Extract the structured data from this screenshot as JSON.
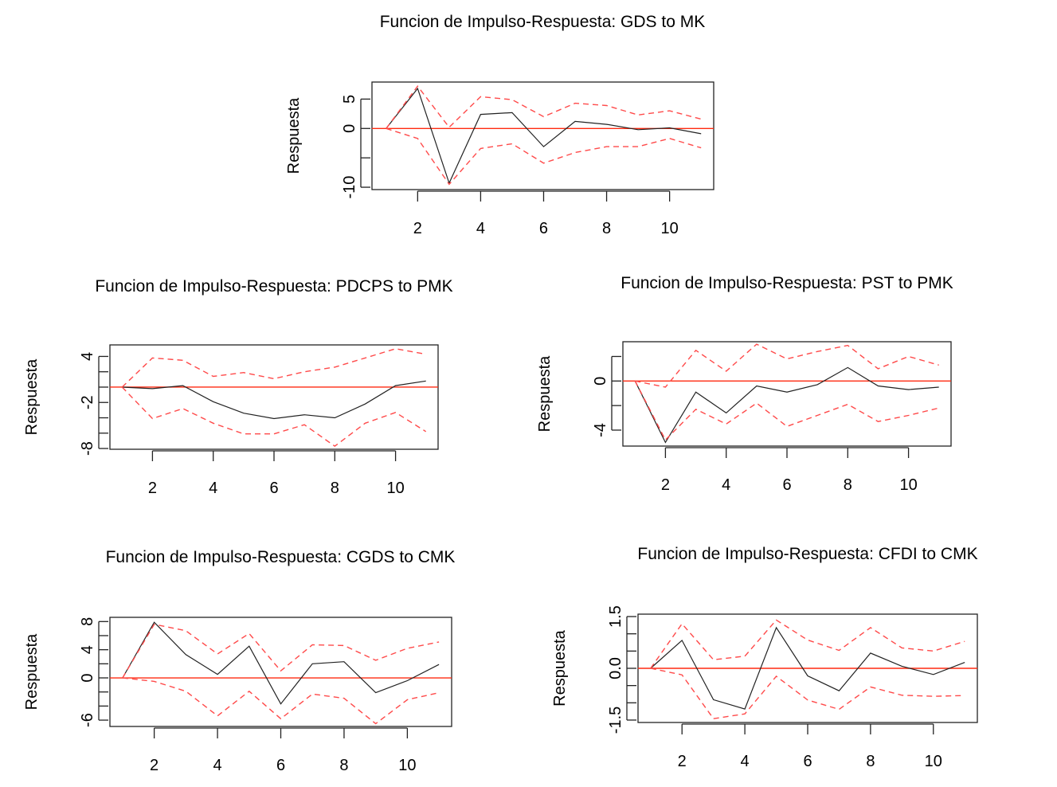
{
  "chart_data": [
    {
      "type": "line",
      "title": "Funcion de Impulso-Respuesta: GDS to MK",
      "xlabel": "",
      "ylabel": "Respuesta",
      "x": [
        1,
        2,
        3,
        4,
        5,
        6,
        7,
        8,
        9,
        10,
        11
      ],
      "xticks": [
        2,
        4,
        6,
        8,
        10
      ],
      "yticks": [
        5,
        0,
        -5,
        -10
      ],
      "ytick_labels": [
        "5",
        "0",
        "",
        "-10"
      ],
      "xlim": [
        0.55,
        11.4
      ],
      "ylim": [
        -10.4,
        7.9
      ],
      "reference_line": 0,
      "series": [
        {
          "name": "response",
          "style": "solid-black",
          "values": [
            0,
            6.8,
            -9.3,
            2.4,
            2.7,
            -3.1,
            1.2,
            0.7,
            -0.2,
            0.1,
            -0.9
          ]
        },
        {
          "name": "upper",
          "style": "dashed-red",
          "values": [
            0,
            7.2,
            0.2,
            5.4,
            4.9,
            2.0,
            4.3,
            3.9,
            2.3,
            3.0,
            1.6
          ]
        },
        {
          "name": "lower",
          "style": "dashed-red",
          "values": [
            0,
            -1.7,
            -9.5,
            -3.4,
            -2.6,
            -5.9,
            -4.1,
            -3.1,
            -3.1,
            -1.7,
            -3.3
          ]
        }
      ]
    },
    {
      "type": "line",
      "title": "Funcion de Impulso-Respuesta: PDCPS to PMK",
      "xlabel": "",
      "ylabel": "Respuesta",
      "x": [
        1,
        2,
        3,
        4,
        5,
        6,
        7,
        8,
        9,
        10,
        11
      ],
      "xticks": [
        2,
        4,
        6,
        8,
        10
      ],
      "yticks": [
        4,
        2,
        0,
        -2,
        -4,
        -6,
        -8
      ],
      "ytick_labels": [
        "4",
        "",
        "",
        "-2",
        "",
        "",
        "-8"
      ],
      "xlim": [
        0.6,
        11.4
      ],
      "ylim": [
        -8.1,
        5.5
      ],
      "reference_line": 0,
      "series": [
        {
          "name": "response",
          "style": "solid-black",
          "values": [
            0,
            -0.2,
            0.2,
            -1.9,
            -3.4,
            -4.1,
            -3.6,
            -4.0,
            -2.2,
            0.2,
            0.8
          ]
        },
        {
          "name": "upper",
          "style": "dashed-red",
          "values": [
            0,
            3.8,
            3.5,
            1.4,
            1.9,
            1.1,
            2.0,
            2.6,
            3.8,
            5.0,
            4.3
          ]
        },
        {
          "name": "lower",
          "style": "dashed-red",
          "values": [
            0,
            -4.1,
            -2.8,
            -4.7,
            -6.1,
            -6.1,
            -4.9,
            -7.7,
            -4.7,
            -3.3,
            -5.8
          ]
        }
      ]
    },
    {
      "type": "line",
      "title": "Funcion de Impulso-Respuesta: PST to PMK",
      "xlabel": "",
      "ylabel": "Respuesta",
      "x": [
        1,
        2,
        3,
        4,
        5,
        6,
        7,
        8,
        9,
        10,
        11
      ],
      "xticks": [
        2,
        4,
        6,
        8,
        10
      ],
      "yticks": [
        2,
        0,
        -2,
        -4
      ],
      "ytick_labels": [
        "",
        "0",
        "",
        "-4"
      ],
      "xlim": [
        0.6,
        11.4
      ],
      "ylim": [
        -5.3,
        3.2
      ],
      "reference_line": 0,
      "series": [
        {
          "name": "response",
          "style": "solid-black",
          "values": [
            0,
            -5.0,
            -0.9,
            -2.6,
            -0.4,
            -0.9,
            -0.3,
            1.1,
            -0.4,
            -0.7,
            -0.5
          ]
        },
        {
          "name": "upper",
          "style": "dashed-red",
          "values": [
            0,
            -0.5,
            2.5,
            0.8,
            3.0,
            1.8,
            2.4,
            2.9,
            1.0,
            2.0,
            1.3
          ]
        },
        {
          "name": "lower",
          "style": "dashed-red",
          "values": [
            0,
            -4.8,
            -2.3,
            -3.5,
            -1.8,
            -3.7,
            -2.8,
            -1.9,
            -3.3,
            -2.8,
            -2.2
          ]
        }
      ]
    },
    {
      "type": "line",
      "title": "Funcion de Impulso-Respuesta: CGDS to CMK",
      "xlabel": "",
      "ylabel": "Respuesta",
      "x": [
        1,
        2,
        3,
        4,
        5,
        6,
        7,
        8,
        9,
        10,
        11
      ],
      "xticks": [
        2,
        4,
        6,
        8,
        10
      ],
      "yticks": [
        8,
        6,
        4,
        2,
        0,
        -2,
        -4,
        -6
      ],
      "ytick_labels": [
        "8",
        "",
        "4",
        "",
        "0",
        "",
        "",
        "-6"
      ],
      "xlim": [
        0.6,
        11.4
      ],
      "ylim": [
        -6.9,
        8.6
      ],
      "reference_line": 0,
      "series": [
        {
          "name": "response",
          "style": "solid-black",
          "values": [
            0,
            7.9,
            3.3,
            0.5,
            4.5,
            -3.7,
            2.0,
            2.3,
            -2.1,
            -0.4,
            1.9
          ]
        },
        {
          "name": "upper",
          "style": "dashed-red",
          "values": [
            0,
            7.6,
            6.7,
            3.4,
            6.3,
            1.0,
            4.7,
            4.6,
            2.5,
            4.2,
            5.1
          ]
        },
        {
          "name": "lower",
          "style": "dashed-red",
          "values": [
            0,
            -0.5,
            -1.9,
            -5.4,
            -1.9,
            -5.8,
            -2.3,
            -2.9,
            -6.5,
            -3.1,
            -2.1
          ]
        }
      ]
    },
    {
      "type": "line",
      "title": "Funcion de Impulso-Respuesta: CFDI to CMK",
      "xlabel": "",
      "ylabel": "Respuesta",
      "x": [
        1,
        2,
        3,
        4,
        5,
        6,
        7,
        8,
        9,
        10,
        11
      ],
      "xticks": [
        2,
        4,
        6,
        8,
        10
      ],
      "yticks": [
        1.5,
        1.0,
        0.5,
        0.0,
        -0.5,
        -1.0,
        -1.5
      ],
      "ytick_labels": [
        "1.5",
        "",
        "",
        "0.0",
        "",
        "",
        "-1.5"
      ],
      "xlim": [
        0.6,
        11.4
      ],
      "ylim": [
        -1.57,
        1.57
      ],
      "reference_line": 0,
      "series": [
        {
          "name": "response",
          "style": "solid-black",
          "values": [
            0,
            0.81,
            -0.91,
            -1.18,
            1.18,
            -0.22,
            -0.65,
            0.44,
            0.06,
            -0.18,
            0.17
          ]
        },
        {
          "name": "upper",
          "style": "dashed-red",
          "values": [
            0,
            1.29,
            0.25,
            0.35,
            1.4,
            0.82,
            0.52,
            1.18,
            0.59,
            0.5,
            0.78
          ]
        },
        {
          "name": "lower",
          "style": "dashed-red",
          "values": [
            0,
            -0.19,
            -1.46,
            -1.32,
            -0.23,
            -0.92,
            -1.19,
            -0.54,
            -0.78,
            -0.81,
            -0.79
          ]
        }
      ]
    }
  ]
}
